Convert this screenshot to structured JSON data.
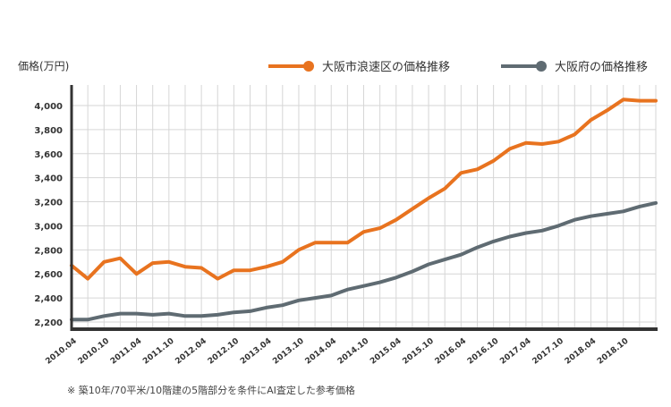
{
  "chart_data": {
    "type": "line",
    "ylabel": "価格(万円)",
    "ylim": [
      2200,
      4000
    ],
    "yticks": [
      "2,200",
      "2,400",
      "2,600",
      "2,800",
      "3,000",
      "3,200",
      "3,400",
      "3,600",
      "3,800",
      "4,000"
    ],
    "xtick_labels": [
      "2010.04",
      "2010.10",
      "2011.04",
      "2011.10",
      "2012.04",
      "2012.10",
      "2013.04",
      "2013.10",
      "2014.04",
      "2014.10",
      "2015.04",
      "2015.10",
      "2016.04",
      "2016.10",
      "2017.04",
      "2017.10",
      "2018.04",
      "2018.10"
    ],
    "grid": true,
    "legend_position": "top-right",
    "footnote": "※ 築10年/70平米/10階建の5階部分を条件にAI査定した参考価格",
    "series": [
      {
        "name": "大阪市浪速区の価格推移",
        "color": "#e8731f",
        "values": [
          2670,
          2560,
          2700,
          2730,
          2600,
          2690,
          2700,
          2660,
          2650,
          2560,
          2630,
          2630,
          2660,
          2700,
          2800,
          2860,
          2860,
          2860,
          2950,
          2980,
          3050,
          3140,
          3230,
          3310,
          3440,
          3470,
          3540,
          3640,
          3690,
          3680,
          3700,
          3760,
          3880,
          3960,
          4050,
          4040,
          4040
        ]
      },
      {
        "name": "大阪府の価格推移",
        "color": "#5f6b72",
        "values": [
          2220,
          2220,
          2250,
          2270,
          2270,
          2260,
          2270,
          2250,
          2250,
          2260,
          2280,
          2290,
          2320,
          2340,
          2380,
          2400,
          2420,
          2470,
          2500,
          2530,
          2570,
          2620,
          2680,
          2720,
          2760,
          2820,
          2870,
          2910,
          2940,
          2960,
          3000,
          3050,
          3080,
          3100,
          3120,
          3160,
          3190
        ]
      }
    ]
  }
}
